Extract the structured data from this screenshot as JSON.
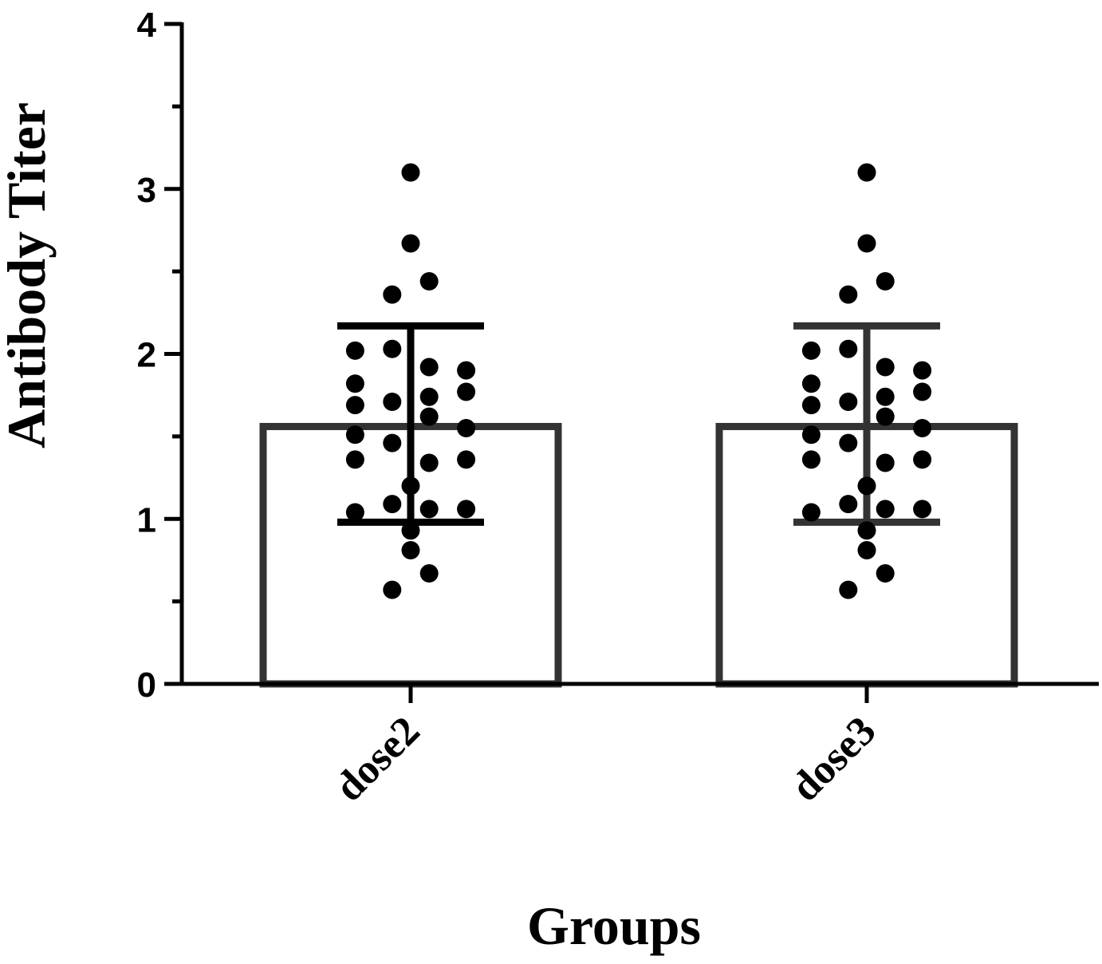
{
  "chart_data": {
    "type": "bar",
    "title": "",
    "xlabel": "Groups",
    "ylabel": "Antibody Titer",
    "ylim": [
      0,
      4
    ],
    "yticks": [
      0,
      1,
      2,
      3,
      4
    ],
    "yticks_minor": [
      0.5,
      1.5,
      2.5,
      3.5
    ],
    "grid": false,
    "categories": [
      "dose2",
      "dose3"
    ],
    "values": [
      1.56,
      1.56
    ],
    "error_bars": [
      {
        "lower": 0.98,
        "upper": 2.17
      },
      {
        "lower": 0.98,
        "upper": 2.17
      }
    ],
    "colors": {
      "bar_edge": "#333333",
      "bar_fill": "#ffffff",
      "points": "#000000",
      "error_bar": [
        "#000000",
        "#333333"
      ]
    },
    "points": [
      [
        {
          "x": 0.0,
          "y": 3.1
        },
        {
          "x": 0.0,
          "y": 2.67
        },
        {
          "x": 0.04,
          "y": 2.44
        },
        {
          "x": -0.04,
          "y": 2.36
        },
        {
          "x": -0.12,
          "y": 2.02
        },
        {
          "x": -0.04,
          "y": 2.03
        },
        {
          "x": 0.04,
          "y": 1.92
        },
        {
          "x": 0.12,
          "y": 1.9
        },
        {
          "x": -0.12,
          "y": 1.82
        },
        {
          "x": -0.04,
          "y": 1.71
        },
        {
          "x": 0.04,
          "y": 1.74
        },
        {
          "x": 0.12,
          "y": 1.77
        },
        {
          "x": -0.12,
          "y": 1.69
        },
        {
          "x": 0.04,
          "y": 1.62
        },
        {
          "x": -0.12,
          "y": 1.51
        },
        {
          "x": 0.12,
          "y": 1.55
        },
        {
          "x": -0.04,
          "y": 1.46
        },
        {
          "x": -0.12,
          "y": 1.36
        },
        {
          "x": 0.04,
          "y": 1.34
        },
        {
          "x": 0.12,
          "y": 1.36
        },
        {
          "x": 0.0,
          "y": 1.2
        },
        {
          "x": -0.04,
          "y": 1.09
        },
        {
          "x": -0.12,
          "y": 1.04
        },
        {
          "x": 0.04,
          "y": 1.06
        },
        {
          "x": 0.12,
          "y": 1.06
        },
        {
          "x": 0.0,
          "y": 0.93
        },
        {
          "x": 0.0,
          "y": 0.81
        },
        {
          "x": 0.04,
          "y": 0.67
        },
        {
          "x": -0.04,
          "y": 0.57
        }
      ],
      [
        {
          "x": 0.0,
          "y": 3.1
        },
        {
          "x": 0.0,
          "y": 2.67
        },
        {
          "x": 0.04,
          "y": 2.44
        },
        {
          "x": -0.04,
          "y": 2.36
        },
        {
          "x": -0.12,
          "y": 2.02
        },
        {
          "x": -0.04,
          "y": 2.03
        },
        {
          "x": 0.04,
          "y": 1.92
        },
        {
          "x": 0.12,
          "y": 1.9
        },
        {
          "x": -0.12,
          "y": 1.82
        },
        {
          "x": -0.04,
          "y": 1.71
        },
        {
          "x": 0.04,
          "y": 1.74
        },
        {
          "x": 0.12,
          "y": 1.77
        },
        {
          "x": -0.12,
          "y": 1.69
        },
        {
          "x": 0.04,
          "y": 1.62
        },
        {
          "x": -0.12,
          "y": 1.51
        },
        {
          "x": 0.12,
          "y": 1.55
        },
        {
          "x": -0.04,
          "y": 1.46
        },
        {
          "x": -0.12,
          "y": 1.36
        },
        {
          "x": 0.04,
          "y": 1.34
        },
        {
          "x": 0.12,
          "y": 1.36
        },
        {
          "x": 0.0,
          "y": 1.2
        },
        {
          "x": -0.04,
          "y": 1.09
        },
        {
          "x": -0.12,
          "y": 1.04
        },
        {
          "x": 0.04,
          "y": 1.06
        },
        {
          "x": 0.12,
          "y": 1.06
        },
        {
          "x": 0.0,
          "y": 0.93
        },
        {
          "x": 0.0,
          "y": 0.81
        },
        {
          "x": 0.04,
          "y": 0.67
        },
        {
          "x": -0.04,
          "y": 0.57
        }
      ]
    ]
  }
}
